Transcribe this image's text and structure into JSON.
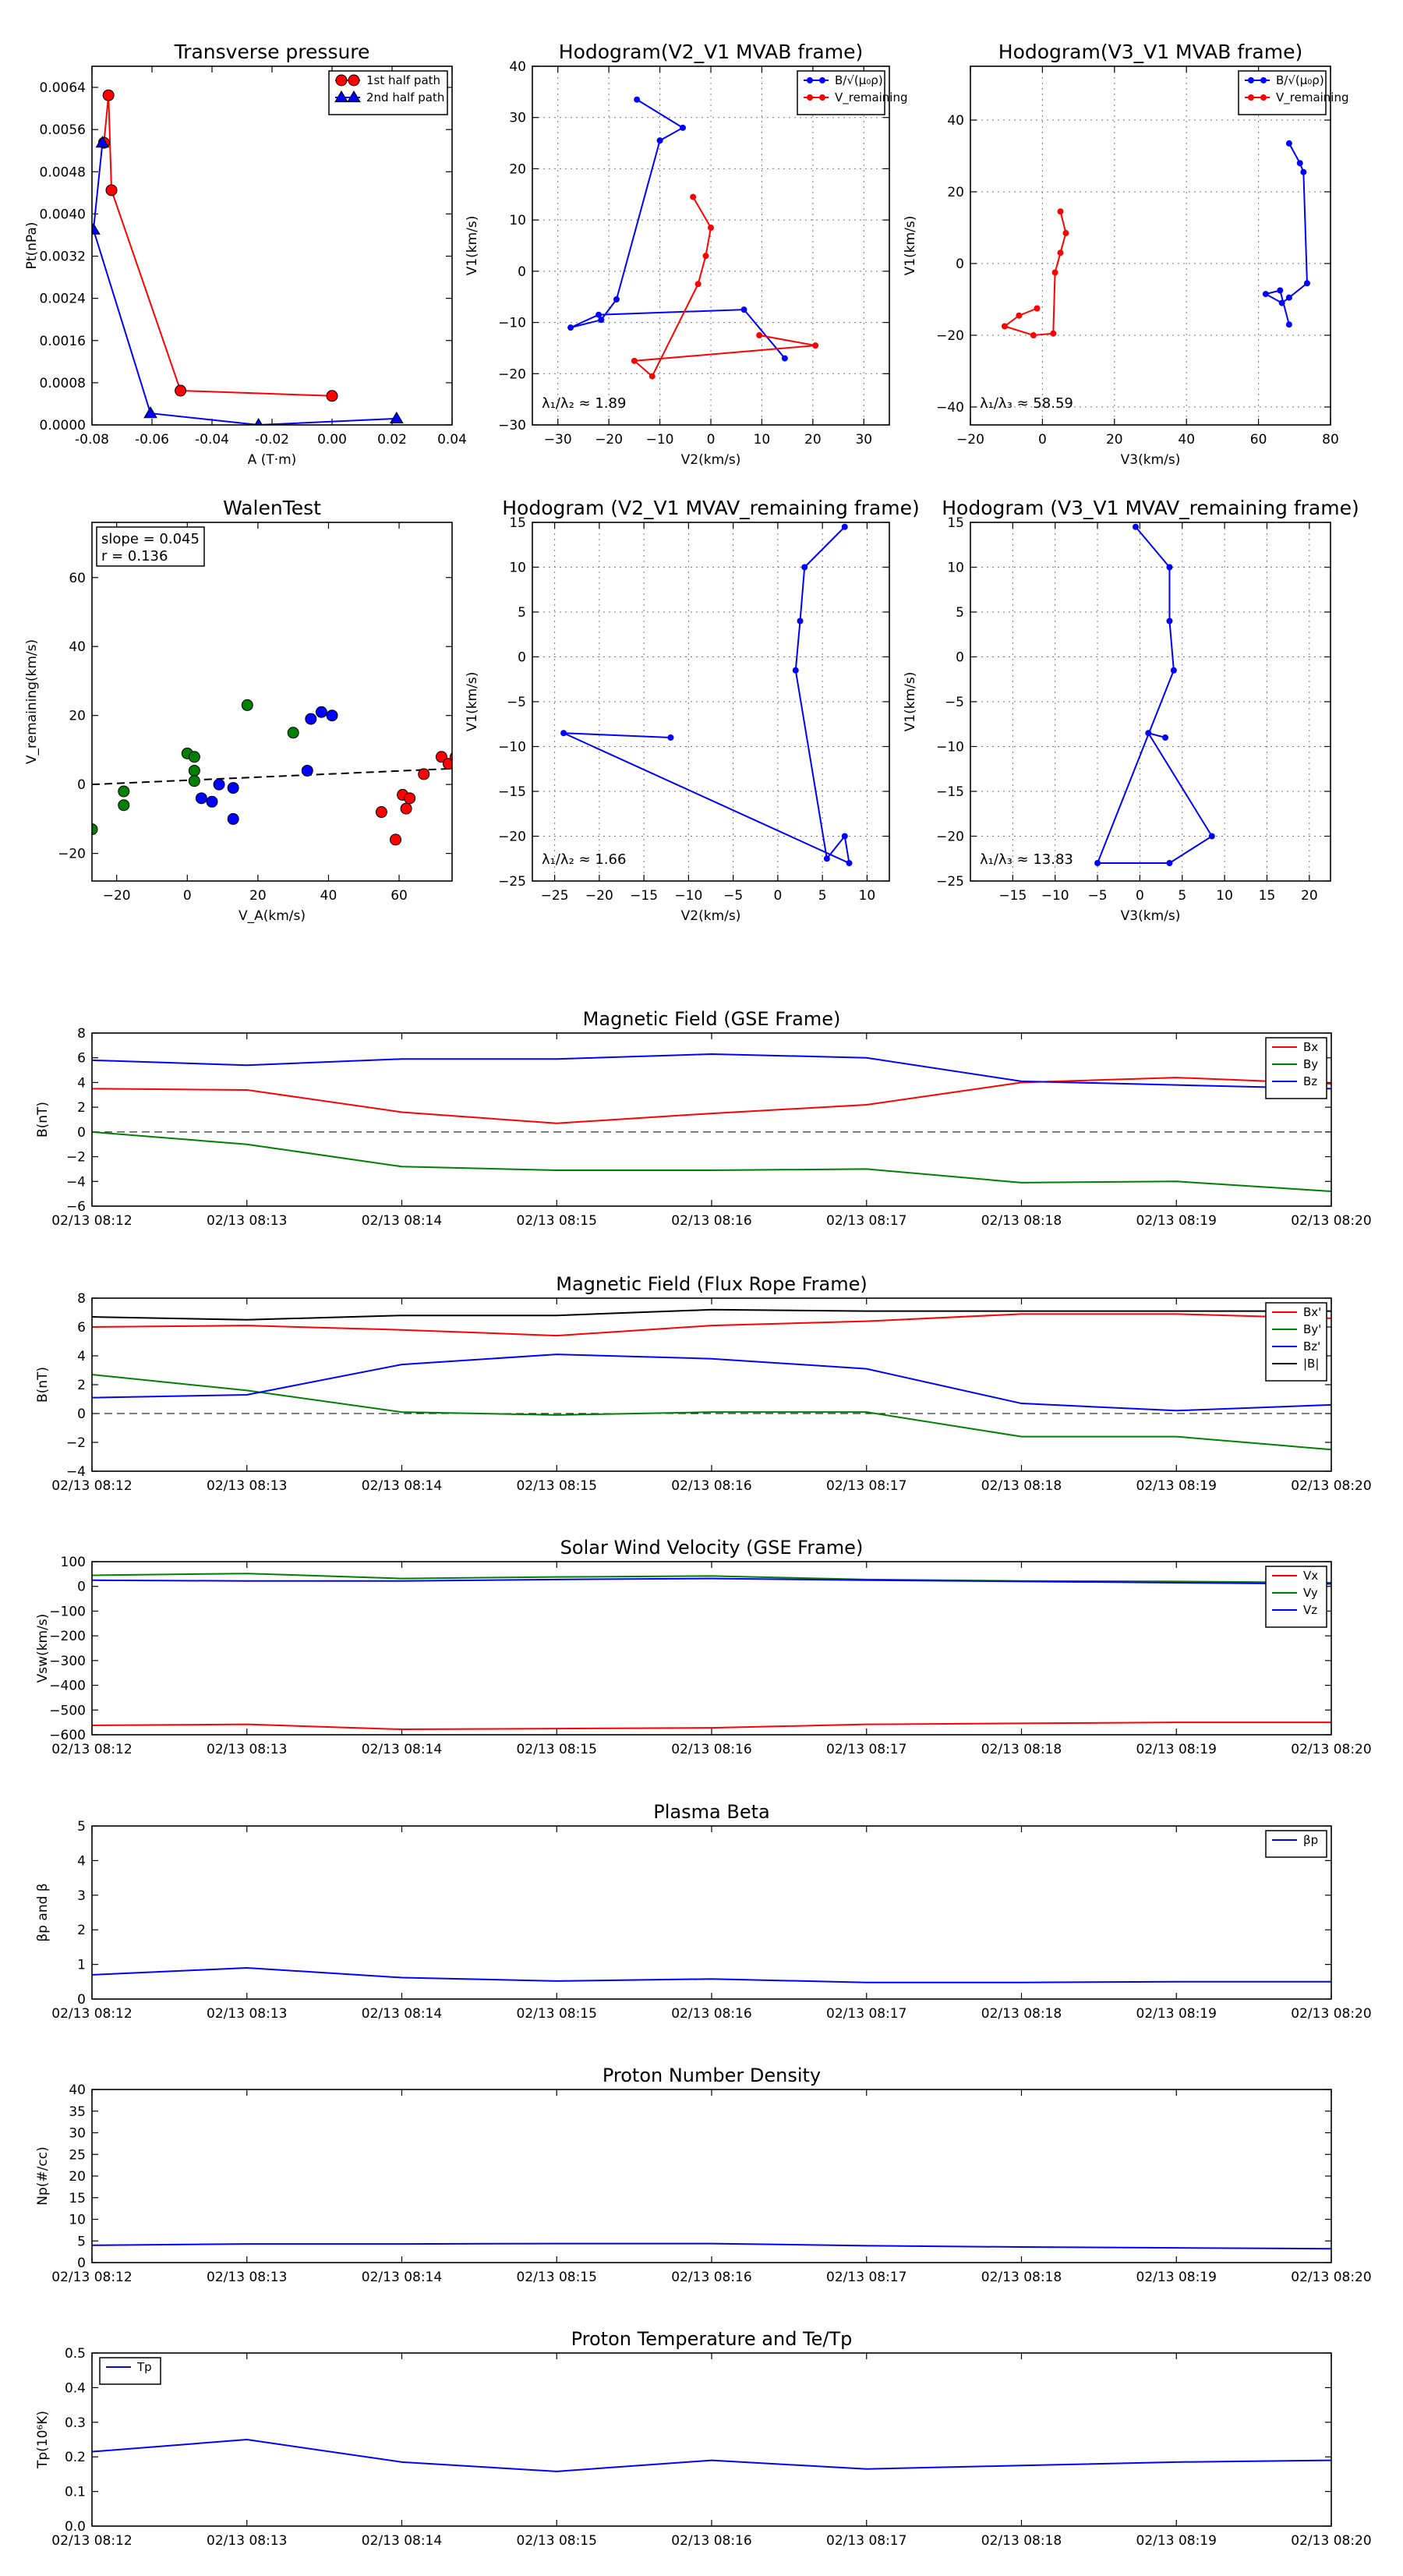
{
  "colors": {
    "red": "#ff0000",
    "blue": "#0000ff",
    "green": "#008000",
    "black": "#000000"
  },
  "chart_data": [
    {
      "type": "scatter",
      "id": "pt",
      "title": "Transverse pressure",
      "xlabel": "A (T·m)",
      "ylabel": "Pt(nPa)",
      "xlim": [
        -0.08,
        0.04
      ],
      "ylim": [
        0,
        0.0068
      ],
      "xticks": [
        -0.08,
        -0.06,
        -0.04,
        -0.02,
        0.0,
        0.02,
        0.04
      ],
      "xtick_labels": [
        "-0.08",
        "-0.06",
        "-0.04",
        "-0.02",
        "0.00",
        "0.02",
        "0.04"
      ],
      "yticks": [
        0,
        0.0008,
        0.0016,
        0.0024,
        0.0032,
        0.004,
        0.0048,
        0.0056,
        0.0064
      ],
      "ytick_labels": [
        "0.0000",
        "0.0008",
        "0.0016",
        "0.0024",
        "0.0032",
        "0.0040",
        "0.0048",
        "0.0056",
        "0.0064"
      ],
      "grid": false,
      "legend_position": "top-right",
      "series": [
        {
          "name": "1st half path",
          "color": "red",
          "marker": "circle",
          "line": true,
          "x": [
            0.0,
            -0.0505,
            -0.0735,
            -0.0745,
            -0.076
          ],
          "y": [
            0.00055,
            0.00065,
            0.00445,
            0.00625,
            0.00535
          ]
        },
        {
          "name": "2nd half path",
          "color": "blue",
          "marker": "triangle",
          "line": true,
          "x": [
            -0.0765,
            -0.0795,
            -0.0605,
            -0.0245,
            0.0215
          ],
          "y": [
            0.00535,
            0.0037,
            0.00022,
            0.0,
            0.00012
          ]
        }
      ]
    },
    {
      "type": "line",
      "id": "h1",
      "title": "Hodogram(V2_V1 MVAB frame)",
      "xlabel": "V2(km/s)",
      "ylabel": "V1(km/s)",
      "xlim": [
        -35,
        35
      ],
      "ylim": [
        -30,
        40
      ],
      "xticks": [
        -30,
        -20,
        -10,
        0,
        10,
        20,
        30
      ],
      "xtick_labels": [
        "−30",
        "−20",
        "−10",
        "0",
        "10",
        "20",
        "30"
      ],
      "yticks": [
        -30,
        -20,
        -10,
        0,
        10,
        20,
        30,
        40
      ],
      "ytick_labels": [
        "−30",
        "−20",
        "−10",
        "0",
        "10",
        "20",
        "30",
        "40"
      ],
      "grid": true,
      "legend_position": "top-right",
      "annotation": "λ₁/λ₂ ≈ 1.89",
      "series": [
        {
          "name": "B/√(μ₀ρ)",
          "color": "blue",
          "marker": "dot",
          "line": true,
          "x": [
            -14.5,
            -5.5,
            -10.0,
            -18.5,
            -21.5,
            -27.5,
            -22.0,
            6.5,
            14.5
          ],
          "y": [
            33.5,
            28.0,
            25.5,
            -5.5,
            -9.5,
            -11.0,
            -8.5,
            -7.5,
            -17.0
          ]
        },
        {
          "name": "V_remaining",
          "color": "red",
          "marker": "dot",
          "line": true,
          "x": [
            -3.5,
            0.0,
            -1.0,
            -2.5,
            -11.5,
            -15.0,
            20.5,
            9.5
          ],
          "y": [
            14.5,
            8.5,
            3.0,
            -2.5,
            -20.5,
            -17.5,
            -14.5,
            -12.5
          ]
        }
      ]
    },
    {
      "type": "line",
      "id": "h2",
      "title": "Hodogram(V3_V1 MVAB frame)",
      "xlabel": "V3(km/s)",
      "ylabel": "V1(km/s)",
      "xlim": [
        -20,
        80
      ],
      "ylim": [
        -45,
        55
      ],
      "xticks": [
        -20,
        0,
        20,
        40,
        60,
        80
      ],
      "xtick_labels": [
        "−20",
        "0",
        "20",
        "40",
        "60",
        "80"
      ],
      "yticks": [
        -40,
        -20,
        0,
        20,
        40
      ],
      "ytick_labels": [
        "−40",
        "−20",
        "0",
        "20",
        "40"
      ],
      "grid": true,
      "legend_position": "top-right",
      "annotation": "λ₁/λ₃ ≈ 58.59",
      "series": [
        {
          "name": "B/√(μ₀ρ)",
          "color": "blue",
          "marker": "dot",
          "line": true,
          "x": [
            68.5,
            71.5,
            72.5,
            73.5,
            68.5,
            66.5,
            62.0,
            66.0,
            68.5
          ],
          "y": [
            33.5,
            28.0,
            25.5,
            -5.5,
            -9.5,
            -11.0,
            -8.5,
            -7.5,
            -17.0
          ]
        },
        {
          "name": "V_remaining",
          "color": "red",
          "marker": "dot",
          "line": true,
          "x": [
            5.0,
            6.5,
            5.0,
            3.5,
            3.0,
            -2.5,
            -10.5,
            -6.5,
            -1.5
          ],
          "y": [
            14.5,
            8.5,
            3.0,
            -2.5,
            -19.5,
            -20.0,
            -17.5,
            -14.5,
            -12.5
          ]
        }
      ]
    },
    {
      "type": "scatter",
      "id": "walen",
      "title": "WalenTest",
      "xlabel": "V_A(km/s)",
      "ylabel": "V_remaining(km/s)",
      "xlim": [
        -27,
        75
      ],
      "ylim": [
        -28,
        76
      ],
      "xticks": [
        -20,
        0,
        20,
        40,
        60
      ],
      "xtick_labels": [
        "−20",
        "0",
        "20",
        "40",
        "60"
      ],
      "yticks": [
        -20,
        0,
        20,
        40,
        60
      ],
      "ytick_labels": [
        "−20",
        "0",
        "20",
        "40",
        "60"
      ],
      "grid": false,
      "annotation_lines": [
        "slope = 0.045",
        "r = 0.136"
      ],
      "fit_line": {
        "x": [
          -27,
          75
        ],
        "y": [
          0.0,
          4.6
        ]
      },
      "series": [
        {
          "color": "green",
          "marker": "circle",
          "x": [
            -27,
            -18,
            -18,
            0,
            2,
            2,
            2,
            17,
            30
          ],
          "y": [
            -13,
            -2,
            -6,
            9,
            8,
            4,
            1,
            23,
            15
          ]
        },
        {
          "color": "blue",
          "marker": "circle",
          "x": [
            4,
            7,
            9,
            13,
            13,
            34,
            35,
            38,
            41
          ],
          "y": [
            -4,
            -5,
            0,
            -1,
            -10,
            4,
            19,
            21,
            20
          ]
        },
        {
          "color": "red",
          "marker": "circle",
          "x": [
            55,
            59,
            61,
            62,
            63,
            67,
            72,
            74,
            76
          ],
          "y": [
            -8,
            -16,
            -3,
            -7,
            -4,
            3,
            8,
            6,
            8
          ]
        }
      ]
    },
    {
      "type": "line",
      "id": "h3",
      "title": "Hodogram (V2_V1 MVAV_remaining frame)",
      "xlabel": "V2(km/s)",
      "ylabel": "V1(km/s)",
      "xlim": [
        -27.5,
        12.5
      ],
      "ylim": [
        -25,
        15
      ],
      "xticks": [
        -25,
        -20,
        -15,
        -10,
        -5,
        0,
        5,
        10
      ],
      "xtick_labels": [
        "−25",
        "−20",
        "−15",
        "−10",
        "−5",
        "0",
        "5",
        "10"
      ],
      "yticks": [
        -25,
        -20,
        -15,
        -10,
        -5,
        0,
        5,
        10,
        15
      ],
      "ytick_labels": [
        "−25",
        "−20",
        "−15",
        "−10",
        "−5",
        "0",
        "5",
        "10",
        "15"
      ],
      "grid": true,
      "annotation": "λ₁/λ₂ ≈ 1.66",
      "series": [
        {
          "color": "blue",
          "marker": "dot",
          "line": true,
          "x": [
            -12.0,
            -24.0,
            8.0,
            7.5,
            5.5,
            2.0,
            2.5,
            3.0,
            7.5
          ],
          "y": [
            -9.0,
            -8.5,
            -23.0,
            -20.0,
            -22.5,
            -1.5,
            4.0,
            10.0,
            14.5
          ]
        }
      ]
    },
    {
      "type": "line",
      "id": "h4",
      "title": "Hodogram (V3_V1 MVAV_remaining frame)",
      "xlabel": "V3(km/s)",
      "ylabel": "V1(km/s)",
      "xlim": [
        -20,
        22.5
      ],
      "ylim": [
        -25,
        15
      ],
      "xticks": [
        -15,
        -10,
        -5,
        0,
        5,
        10,
        15,
        20
      ],
      "xtick_labels": [
        "−15",
        "−10",
        "−5",
        "0",
        "5",
        "10",
        "15",
        "20"
      ],
      "yticks": [
        -25,
        -20,
        -15,
        -10,
        -5,
        0,
        5,
        10,
        15
      ],
      "ytick_labels": [
        "−25",
        "−20",
        "−15",
        "−10",
        "−5",
        "0",
        "5",
        "10",
        "15"
      ],
      "grid": true,
      "annotation": "λ₁/λ₃ ≈ 13.83",
      "series": [
        {
          "color": "blue",
          "marker": "dot",
          "line": true,
          "x": [
            3.0,
            1.0,
            8.5,
            3.5,
            -5.0,
            4.0,
            3.5,
            3.5,
            -0.5
          ],
          "y": [
            -9.0,
            -8.5,
            -20.0,
            -23.0,
            -23.0,
            -1.5,
            4.0,
            10.0,
            14.5
          ]
        }
      ]
    },
    {
      "type": "line",
      "id": "bgse",
      "title": "Magnetic Field (GSE Frame)",
      "ylabel": "B(nT)",
      "categories": [
        "02/13 08:12",
        "02/13 08:13",
        "02/13 08:14",
        "02/13 08:15",
        "02/13 08:16",
        "02/13 08:17",
        "02/13 08:18",
        "02/13 08:19",
        "02/13 08:20"
      ],
      "ylim": [
        -6,
        8
      ],
      "yticks": [
        -6,
        -4,
        -2,
        0,
        2,
        4,
        6,
        8
      ],
      "ytick_labels": [
        "−6",
        "−4",
        "−2",
        "0",
        "2",
        "4",
        "6",
        "8"
      ],
      "zero_line": true,
      "legend_position": "top-right",
      "series": [
        {
          "name": "Bx",
          "color": "red",
          "values": [
            3.5,
            3.4,
            1.6,
            0.7,
            1.5,
            2.2,
            4.0,
            4.4,
            3.9
          ]
        },
        {
          "name": "By",
          "color": "green",
          "values": [
            0.0,
            -1.0,
            -2.8,
            -3.1,
            -3.1,
            -3.0,
            -4.1,
            -4.0,
            -4.8
          ]
        },
        {
          "name": "Bz",
          "color": "blue",
          "values": [
            5.8,
            5.4,
            5.9,
            5.9,
            6.3,
            6.0,
            4.1,
            3.8,
            3.5
          ]
        }
      ]
    },
    {
      "type": "line",
      "id": "bfr",
      "title": "Magnetic Field (Flux Rope Frame)",
      "ylabel": "B(nT)",
      "categories": [
        "02/13 08:12",
        "02/13 08:13",
        "02/13 08:14",
        "02/13 08:15",
        "02/13 08:16",
        "02/13 08:17",
        "02/13 08:18",
        "02/13 08:19",
        "02/13 08:20"
      ],
      "ylim": [
        -4,
        8
      ],
      "yticks": [
        -4,
        -2,
        0,
        2,
        4,
        6,
        8
      ],
      "ytick_labels": [
        "−4",
        "−2",
        "0",
        "2",
        "4",
        "6",
        "8"
      ],
      "zero_line": true,
      "legend_position": "top-right",
      "series": [
        {
          "name": "Bx'",
          "color": "red",
          "values": [
            6.0,
            6.1,
            5.8,
            5.4,
            6.1,
            6.4,
            6.9,
            6.9,
            6.6
          ]
        },
        {
          "name": "By'",
          "color": "green",
          "values": [
            2.7,
            1.6,
            0.1,
            -0.1,
            0.1,
            0.1,
            -1.6,
            -1.6,
            -2.5
          ]
        },
        {
          "name": "Bz'",
          "color": "blue",
          "values": [
            1.1,
            1.3,
            3.4,
            4.1,
            3.8,
            3.1,
            0.7,
            0.2,
            0.6
          ]
        },
        {
          "name": "|B|",
          "color": "black",
          "values": [
            6.7,
            6.5,
            6.8,
            6.8,
            7.2,
            7.1,
            7.1,
            7.1,
            7.1
          ]
        }
      ]
    },
    {
      "type": "line",
      "id": "vsw",
      "title": "Solar Wind Velocity (GSE Frame)",
      "ylabel": "Vsw(km/s)",
      "categories": [
        "02/13 08:12",
        "02/13 08:13",
        "02/13 08:14",
        "02/13 08:15",
        "02/13 08:16",
        "02/13 08:17",
        "02/13 08:18",
        "02/13 08:19",
        "02/13 08:20"
      ],
      "ylim": [
        -600,
        100
      ],
      "yticks": [
        -600,
        -500,
        -400,
        -300,
        -200,
        -100,
        0,
        100
      ],
      "ytick_labels": [
        "−600",
        "−500",
        "−400",
        "−300",
        "−200",
        "−100",
        "0",
        "100"
      ],
      "legend_position": "top-right",
      "series": [
        {
          "name": "Vx",
          "color": "red",
          "values": [
            -562,
            -558,
            -578,
            -575,
            -572,
            -558,
            -554,
            -550,
            -550
          ]
        },
        {
          "name": "Vy",
          "color": "green",
          "values": [
            45,
            52,
            32,
            38,
            42,
            28,
            22,
            20,
            15
          ]
        },
        {
          "name": "Vz",
          "color": "blue",
          "values": [
            25,
            22,
            22,
            28,
            32,
            25,
            20,
            15,
            10
          ]
        }
      ]
    },
    {
      "type": "line",
      "id": "beta",
      "title": "Plasma Beta",
      "ylabel": "βp and β",
      "categories": [
        "02/13 08:12",
        "02/13 08:13",
        "02/13 08:14",
        "02/13 08:15",
        "02/13 08:16",
        "02/13 08:17",
        "02/13 08:18",
        "02/13 08:19",
        "02/13 08:20"
      ],
      "ylim": [
        0,
        5
      ],
      "yticks": [
        0,
        1,
        2,
        3,
        4,
        5
      ],
      "ytick_labels": [
        "0",
        "1",
        "2",
        "3",
        "4",
        "5"
      ],
      "legend_position": "top-right",
      "series": [
        {
          "name": "βp",
          "color": "blue",
          "values": [
            0.7,
            0.9,
            0.62,
            0.52,
            0.58,
            0.48,
            0.48,
            0.5,
            0.5
          ]
        }
      ]
    },
    {
      "type": "line",
      "id": "np",
      "title": "Proton Number Density",
      "ylabel": "Np(#/cc)",
      "categories": [
        "02/13 08:12",
        "02/13 08:13",
        "02/13 08:14",
        "02/13 08:15",
        "02/13 08:16",
        "02/13 08:17",
        "02/13 08:18",
        "02/13 08:19",
        "02/13 08:20"
      ],
      "ylim": [
        0,
        40
      ],
      "yticks": [
        0,
        5,
        10,
        15,
        20,
        25,
        30,
        35,
        40
      ],
      "ytick_labels": [
        "0",
        "5",
        "10",
        "15",
        "20",
        "25",
        "30",
        "35",
        "40"
      ],
      "series": [
        {
          "color": "blue",
          "values": [
            4.0,
            4.3,
            4.3,
            4.4,
            4.4,
            3.9,
            3.6,
            3.4,
            3.2
          ]
        }
      ]
    },
    {
      "type": "line",
      "id": "tp",
      "title": "Proton Temperature and Te/Tp",
      "ylabel": "Tp(10⁶K)",
      "categories": [
        "02/13 08:12",
        "02/13 08:13",
        "02/13 08:14",
        "02/13 08:15",
        "02/13 08:16",
        "02/13 08:17",
        "02/13 08:18",
        "02/13 08:19",
        "02/13 08:20"
      ],
      "ylim": [
        0,
        0.5
      ],
      "yticks": [
        0,
        0.1,
        0.2,
        0.3,
        0.4,
        0.5
      ],
      "ytick_labels": [
        "0.0",
        "0.1",
        "0.2",
        "0.3",
        "0.4",
        "0.5"
      ],
      "legend_position": "top-left",
      "series": [
        {
          "name": "Tp",
          "color": "blue",
          "values": [
            0.215,
            0.25,
            0.185,
            0.158,
            0.19,
            0.165,
            0.175,
            0.185,
            0.19
          ]
        }
      ]
    }
  ]
}
